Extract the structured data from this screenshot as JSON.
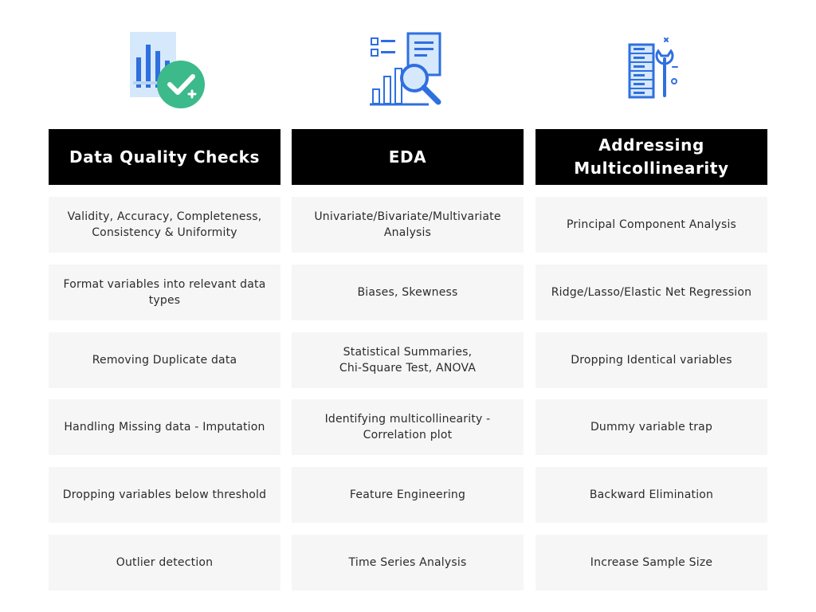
{
  "columns": [
    {
      "icon": "report-check-icon",
      "header": "Data Quality Checks",
      "items": [
        "Validity, Accuracy, Completeness,\nConsistency & Uniformity",
        "Format variables into relevant data\ntypes",
        "Removing Duplicate data",
        "Handling Missing data - Imputation",
        "Dropping variables below threshold",
        "Outlier detection"
      ]
    },
    {
      "icon": "data-analysis-magnifier-icon",
      "header": "EDA",
      "items": [
        "Univariate/Bivariate/Multivariate\nAnalysis",
        "Biases, Skewness",
        "Statistical Summaries,\nChi-Square Test, ANOVA",
        "Identifying multicollinearity -\nCorrelation plot",
        "Feature Engineering",
        "Time Series Analysis"
      ]
    },
    {
      "icon": "server-wrench-icon",
      "header": "Addressing\nMulticollinearity",
      "items": [
        "Principal Component Analysis",
        "Ridge/Lasso/Elastic Net Regression",
        "Dropping Identical variables",
        "Dummy variable trap",
        "Backward Elimination",
        "Increase Sample Size"
      ]
    }
  ],
  "colors": {
    "header_bg": "#000000",
    "header_text": "#ffffff",
    "cell_bg": "#f6f6f6",
    "cell_text": "#2b2b2b",
    "icon_blue": "#2f6fe0",
    "icon_light_blue": "#d6e8fb",
    "check_green": "#3cba8b"
  }
}
